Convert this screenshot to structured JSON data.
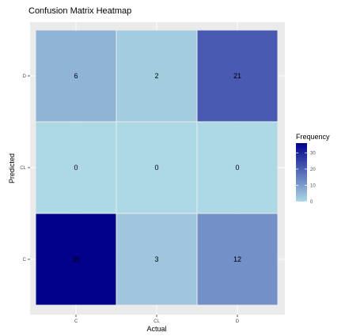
{
  "chart_data": {
    "type": "heatmap",
    "title": "Confusion Matrix Heatmap",
    "xlabel": "Actual",
    "ylabel": "Predicted",
    "x_categories": [
      "C",
      "CL",
      "D"
    ],
    "y_categories": [
      "C",
      "CL",
      "D"
    ],
    "cells": [
      {
        "actual": "C",
        "predicted": "D",
        "value": 6
      },
      {
        "actual": "CL",
        "predicted": "D",
        "value": 2
      },
      {
        "actual": "D",
        "predicted": "D",
        "value": 21
      },
      {
        "actual": "C",
        "predicted": "CL",
        "value": 0
      },
      {
        "actual": "CL",
        "predicted": "CL",
        "value": 0
      },
      {
        "actual": "D",
        "predicted": "CL",
        "value": 0
      },
      {
        "actual": "C",
        "predicted": "C",
        "value": 36
      },
      {
        "actual": "CL",
        "predicted": "C",
        "value": 3
      },
      {
        "actual": "D",
        "predicted": "C",
        "value": 12
      }
    ],
    "legend": {
      "title": "Frequency",
      "ticks": [
        0,
        10,
        20,
        30
      ],
      "range": [
        0,
        36
      ],
      "low_color": "#add8e6",
      "high_color": "#00008b",
      "placement": "right"
    },
    "panel_background": "#ebebeb",
    "grid": true
  }
}
